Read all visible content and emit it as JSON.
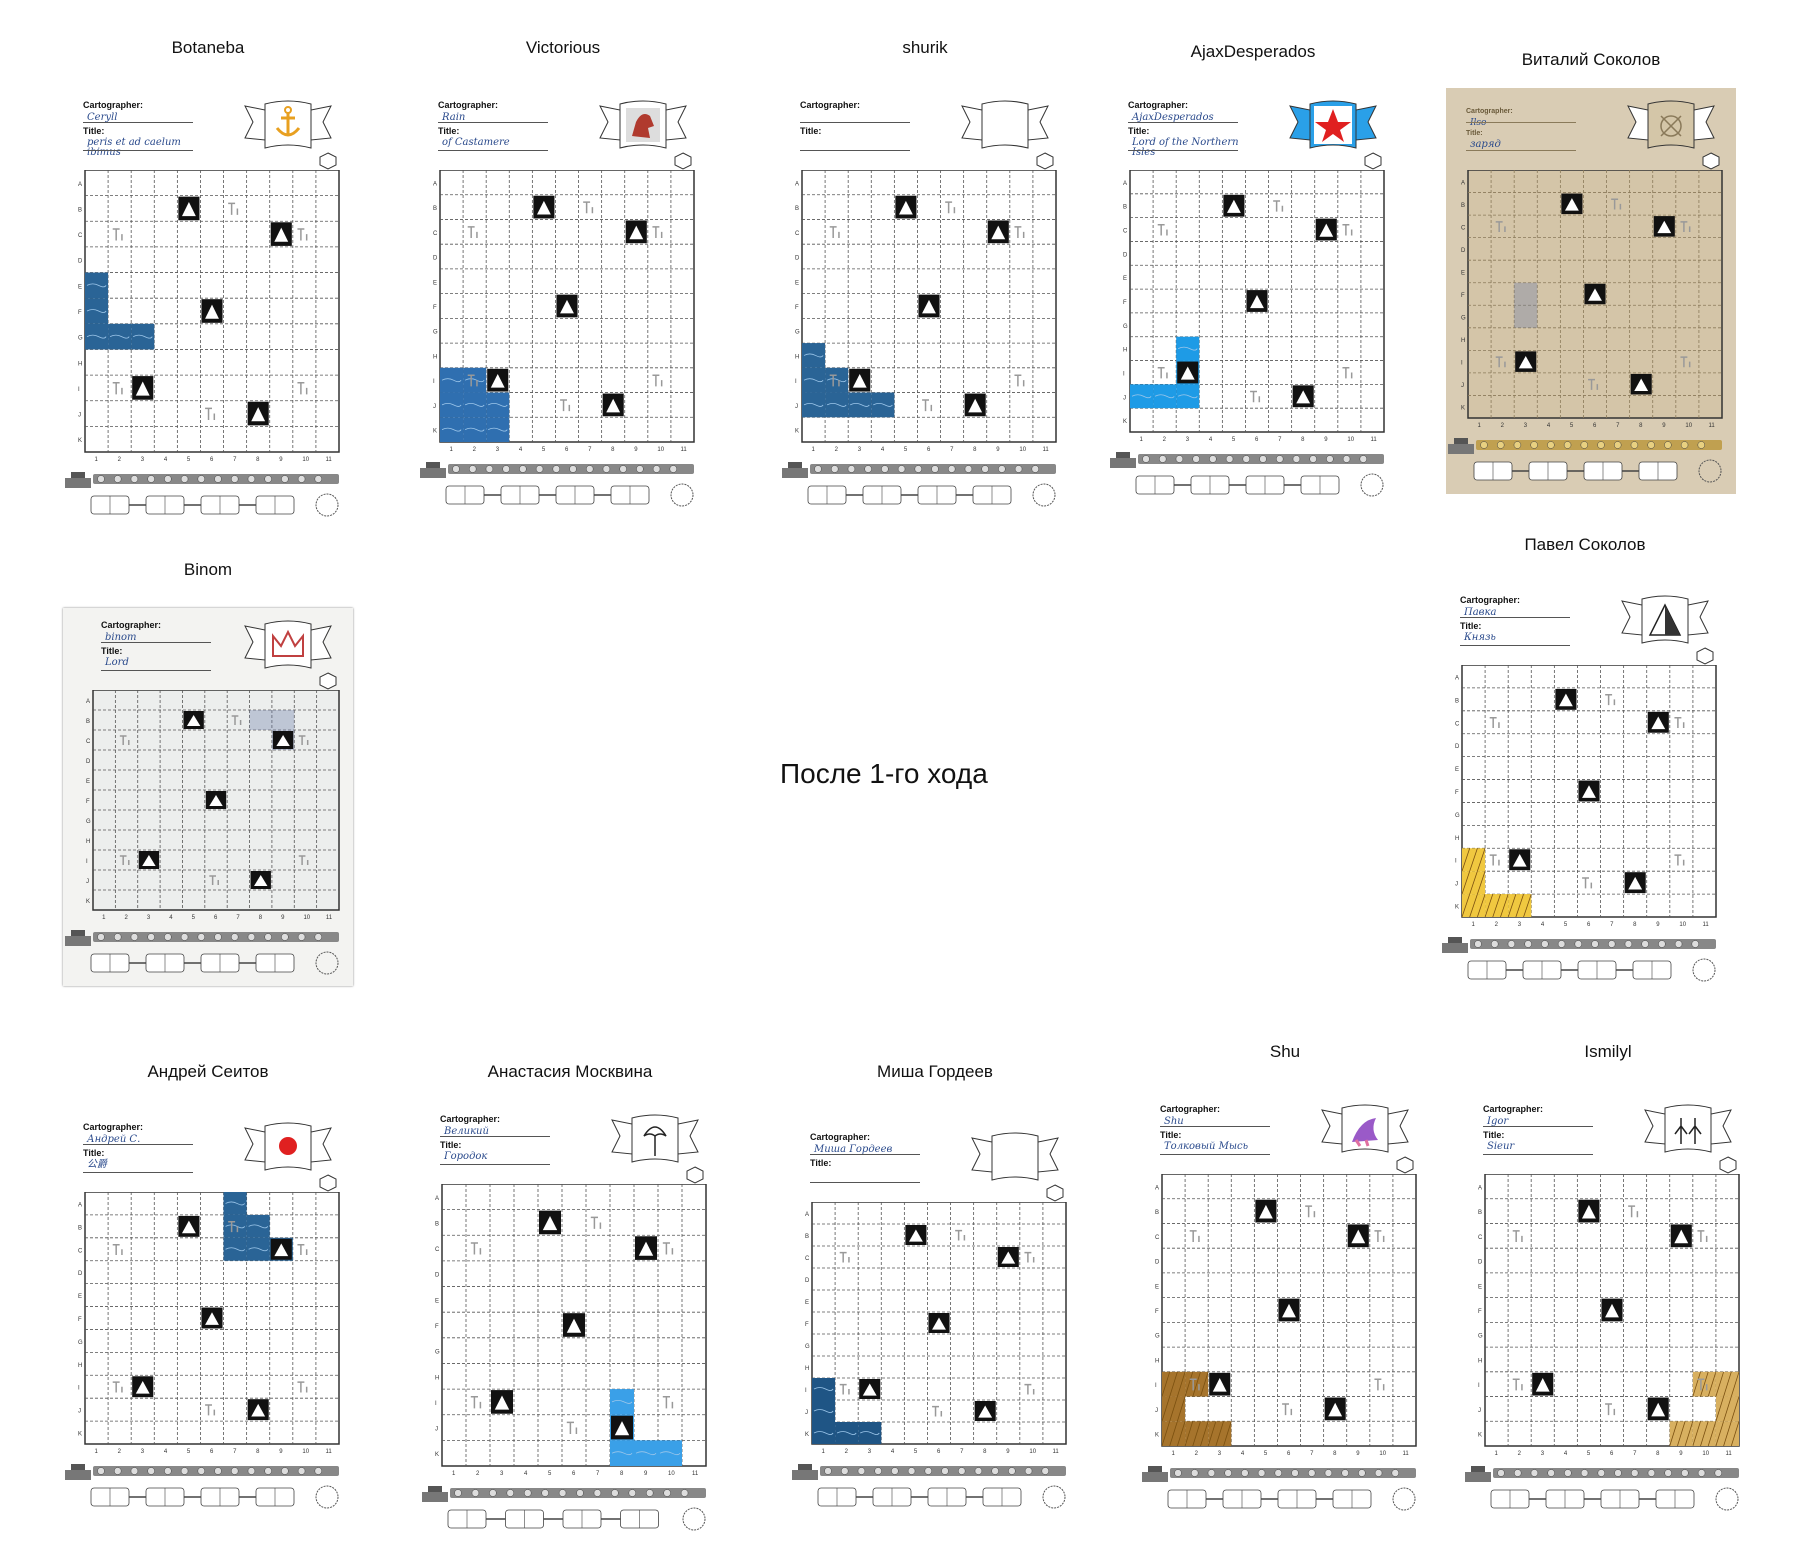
{
  "caption": "После 1-го хода",
  "sheets": [
    {
      "player": "Botaneba",
      "cartographer": "Ceryll",
      "title": "peris et ad caelum ibimus",
      "emblem": "anchor-icon",
      "emblemColor": "#e8a020",
      "fill": "water",
      "fillColor": "#2a6496"
    },
    {
      "player": "Victorious",
      "cartographer": "Rain",
      "title": "of Castamere",
      "emblem": "lion-icon",
      "emblemColor": "#b03a2e",
      "fill": "water",
      "fillColor": "#2f6fb0"
    },
    {
      "player": "shurik",
      "cartographer": "",
      "title": "",
      "emblem": "",
      "emblemColor": "",
      "fill": "water",
      "fillColor": "#2a6496"
    },
    {
      "player": "AjaxDesperados",
      "cartographer": "AjaxDesperados",
      "title": "Lord of the Northern Isles",
      "emblem": "star-icon",
      "emblemColor": "#e02020",
      "fill": "water",
      "fillColor": "#1e9be6"
    },
    {
      "player": "Виталий Соколов",
      "cartographer": "Ilso",
      "title": "заряд",
      "emblem": "crest-icon",
      "emblemColor": "#8a7a5a",
      "fill": "drawn",
      "fillColor": "#6a7aa8"
    },
    {
      "player": "Binom",
      "cartographer": "binom",
      "title": "Lord",
      "emblem": "crown-icon",
      "emblemColor": "#c04040",
      "fill": "drawn",
      "fillColor": "#6a7aa8"
    },
    {
      "player": "Павел Соколов",
      "cartographer": "Павка",
      "title": "Князь",
      "emblem": "pyramid-icon",
      "emblemColor": "#222222",
      "fill": "farm",
      "fillColor": "#f0c840"
    },
    {
      "player": "Андрей Сеитов",
      "cartographer": "Андрей С.",
      "title": "公爵",
      "emblem": "sun-icon",
      "emblemColor": "#e02020",
      "fill": "water",
      "fillColor": "#2a6496"
    },
    {
      "player": "Анастасия Москвина",
      "cartographer": "Великий",
      "title": "Городок",
      "emblem": "tree-icon",
      "emblemColor": "#222222",
      "fill": "river",
      "fillColor": "#3aa0e8"
    },
    {
      "player": "Миша Гордеев",
      "cartographer": "Миша Гордеев",
      "title": "",
      "emblem": "",
      "emblemColor": "",
      "fill": "water",
      "fillColor": "#1f5585"
    },
    {
      "player": "Shu",
      "cartographer": "Shu",
      "title": "Толковый Мысь",
      "emblem": "pegasus-icon",
      "emblemColor": "#9a5ac8",
      "fill": "field",
      "fillColor": "#a6742c"
    },
    {
      "player": "Ismilyl",
      "cartographer": "Igor",
      "title": "Sieur",
      "emblem": "figures-icon",
      "emblemColor": "#222222",
      "fill": "farm",
      "fillColor": "#d8b060"
    }
  ],
  "rowLetters": [
    "A",
    "B",
    "C",
    "D",
    "E",
    "F",
    "G",
    "H",
    "I",
    "J",
    "K"
  ],
  "colNumbers": [
    "1",
    "2",
    "3",
    "4",
    "5",
    "6",
    "7",
    "8",
    "9",
    "10",
    "11"
  ],
  "labels": {
    "cartographer": "Cartographer:",
    "title": "Title:"
  }
}
